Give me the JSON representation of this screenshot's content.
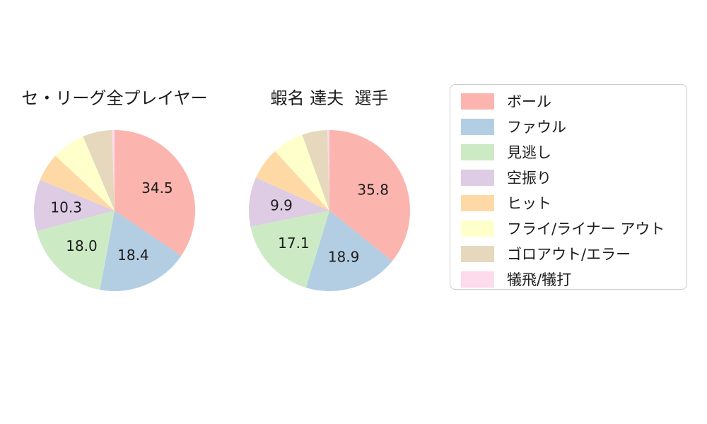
{
  "background": "#ffffff",
  "text_color": "#1c1c1c",
  "legend": {
    "position": "right",
    "border_color": "#cccccc",
    "items": [
      {
        "label": "ボール",
        "color": "#fbb4ae"
      },
      {
        "label": "ファウル",
        "color": "#b3cde3"
      },
      {
        "label": "見逃し",
        "color": "#ccebc5"
      },
      {
        "label": "空振り",
        "color": "#decbe4"
      },
      {
        "label": "ヒット",
        "color": "#fed9a6"
      },
      {
        "label": "フライ/ライナー アウト",
        "color": "#ffffcc"
      },
      {
        "label": "ゴロアウト/エラー",
        "color": "#e5d8bd"
      },
      {
        "label": "犠飛/犠打",
        "color": "#fddaec"
      }
    ]
  },
  "chart_data": [
    {
      "type": "pie",
      "title": "セ・リーグ全プレイヤー",
      "categories": [
        "ボール",
        "ファウル",
        "見逃し",
        "空振り",
        "ヒット",
        "フライ/ライナー アウト",
        "ゴロアウト/エラー",
        "犠飛/犠打"
      ],
      "values": [
        34.5,
        18.4,
        18.0,
        10.3,
        5.7,
        6.7,
        5.9,
        0.5
      ],
      "labeled_values": [
        "34.5",
        "18.4",
        "18.0",
        "10.3"
      ],
      "colors": [
        "#fbb4ae",
        "#b3cde3",
        "#ccebc5",
        "#decbe4",
        "#fed9a6",
        "#ffffcc",
        "#e5d8bd",
        "#fddaec"
      ],
      "start_angle": 90,
      "counterclock": false,
      "label_threshold_pct": 7,
      "label_distance": 0.6,
      "legend_on": true
    },
    {
      "type": "pie",
      "title": "蝦名 達夫  選手",
      "categories": [
        "ボール",
        "ファウル",
        "見逃し",
        "空振り",
        "ヒット",
        "フライ/ライナー アウト",
        "ゴロアウト/エラー",
        "犠飛/犠打"
      ],
      "values": [
        35.8,
        18.9,
        17.1,
        9.9,
        6.5,
        6.3,
        5.1,
        0.4
      ],
      "labeled_values": [
        "35.8",
        "18.9",
        "17.1",
        "9.9"
      ],
      "colors": [
        "#fbb4ae",
        "#b3cde3",
        "#ccebc5",
        "#decbe4",
        "#fed9a6",
        "#ffffcc",
        "#e5d8bd",
        "#fddaec"
      ],
      "start_angle": 90,
      "counterclock": false,
      "label_threshold_pct": 7,
      "label_distance": 0.6,
      "legend_on": true
    }
  ]
}
